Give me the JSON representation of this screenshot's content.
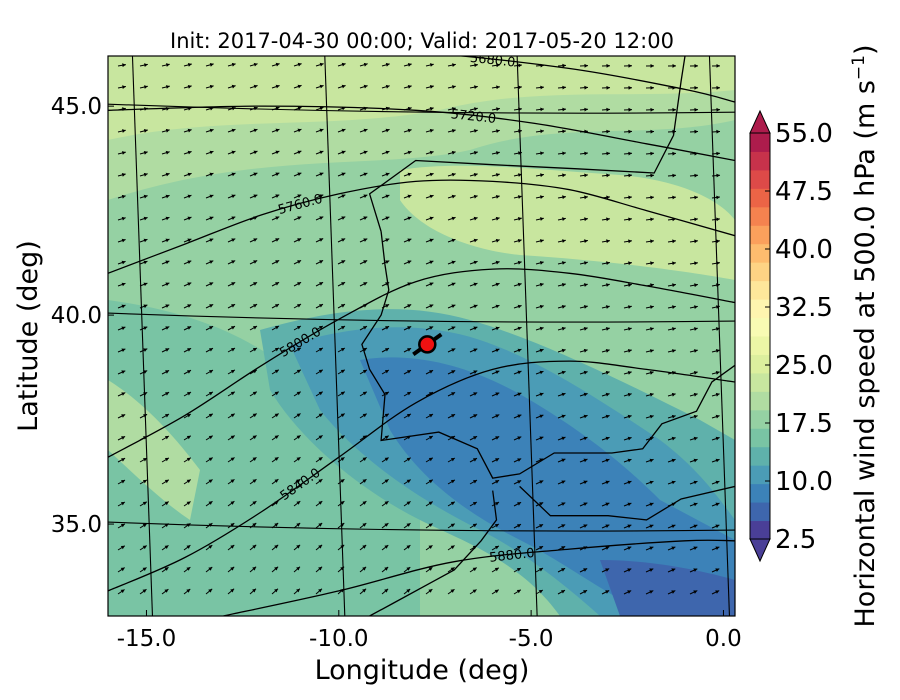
{
  "chart_data": {
    "type": "heatmap",
    "title": "Init: 2017-04-30 00:00; Valid: 2017-05-20 12:00",
    "xlabel": "Longitude (deg)",
    "ylabel": "Latitude (deg)",
    "xlim": [
      -16.0,
      0.3
    ],
    "ylim": [
      32.8,
      46.2
    ],
    "x_ticks": [
      -15.0,
      -10.0,
      -5.0,
      0.0
    ],
    "x_tick_labels": [
      "-15.0",
      "-10.0",
      "-5.0",
      "0.0"
    ],
    "y_ticks": [
      35.0,
      40.0,
      45.0
    ],
    "y_tick_labels": [
      "35.0",
      "40.0",
      "45.0"
    ],
    "colorbar": {
      "label": "Horizontal wind speed at 500.0 hPa (m s",
      "label_superscript": "−1",
      "label_suffix": ")",
      "min": 2.5,
      "max": 55.0,
      "step": 2.5,
      "tick_values": [
        2.5,
        10.0,
        17.5,
        25.0,
        32.5,
        40.0,
        47.5,
        55.0
      ],
      "tick_labels": [
        "2.5",
        "10.0",
        "17.5",
        "25.0",
        "32.5",
        "40.0",
        "47.5",
        "55.0"
      ],
      "colors": [
        "#4a3f97",
        "#3e66ad",
        "#3c82b8",
        "#4b9cb6",
        "#5fb1ab",
        "#79c4a4",
        "#95d1a3",
        "#b0dca2",
        "#c8e69f",
        "#dcef9e",
        "#ecf6a6",
        "#f8fbb3",
        "#fef5af",
        "#fee79b",
        "#fdd384",
        "#fdbc6e",
        "#fba05c",
        "#f5824f",
        "#ec6446",
        "#dd4a48",
        "#c7324b",
        "#ad1c4c"
      ]
    },
    "contours_geopotential_height_m": [
      {
        "value": 5680.0,
        "label": "5680.0",
        "path": [
          [
            -16,
            46.6
          ],
          [
            -12,
            46.5
          ],
          [
            -8,
            46.3
          ],
          [
            -4,
            45.9
          ],
          [
            -1,
            45.4
          ],
          [
            0.3,
            45.1
          ]
        ]
      },
      {
        "value": 5720.0,
        "label": "5720.0",
        "path": [
          [
            -16,
            44.9
          ],
          [
            -12,
            45.0
          ],
          [
            -8,
            44.9
          ],
          [
            -5,
            44.6
          ],
          [
            -2,
            44.1
          ],
          [
            0.3,
            43.7
          ]
        ]
      },
      {
        "value": 5760.0,
        "label": "5760.0",
        "path": [
          [
            -16,
            41.0
          ],
          [
            -14,
            41.7
          ],
          [
            -12,
            42.4
          ],
          [
            -10,
            42.9
          ],
          [
            -8,
            43.2
          ],
          [
            -6,
            43.2
          ],
          [
            -4,
            43.0
          ],
          [
            -2,
            42.5
          ],
          [
            0.3,
            41.9
          ]
        ]
      },
      {
        "value": 5800.0,
        "label": "5800.0",
        "path": [
          [
            -16,
            36.6
          ],
          [
            -14,
            37.6
          ],
          [
            -12,
            38.8
          ],
          [
            -10,
            39.9
          ],
          [
            -8,
            40.8
          ],
          [
            -6,
            41.1
          ],
          [
            -4,
            41.0
          ],
          [
            -2,
            40.7
          ],
          [
            0.3,
            40.3
          ]
        ]
      },
      {
        "value": 5840.0,
        "label": "5840.0",
        "path": [
          [
            -16,
            33.4
          ],
          [
            -14,
            34.2
          ],
          [
            -12,
            35.3
          ],
          [
            -10,
            36.6
          ],
          [
            -8,
            37.9
          ],
          [
            -6,
            38.7
          ],
          [
            -4,
            38.9
          ],
          [
            -2,
            38.7
          ],
          [
            0.3,
            38.4
          ]
        ]
      },
      {
        "value": 5880.0,
        "label": "5880.0",
        "path": [
          [
            -13,
            32.8
          ],
          [
            -10,
            33.4
          ],
          [
            -7,
            34.1
          ],
          [
            -4,
            34.4
          ],
          [
            -1,
            34.6
          ],
          [
            0.3,
            34.6
          ]
        ]
      }
    ],
    "marker": {
      "name": "",
      "lon": -7.7,
      "lat": 39.3,
      "color": "#ee1111"
    },
    "coastline": [
      [
        -8.9,
        42.0
      ],
      [
        -8.8,
        41.2
      ],
      [
        -8.7,
        40.6
      ],
      [
        -8.9,
        40.0
      ],
      [
        -9.4,
        39.3
      ],
      [
        -9.2,
        38.7
      ],
      [
        -8.8,
        38.1
      ],
      [
        -8.9,
        37.0
      ],
      [
        -7.4,
        37.2
      ],
      [
        -6.4,
        36.8
      ],
      [
        -6.0,
        36.1
      ],
      [
        -5.3,
        36.2
      ],
      [
        -4.4,
        36.7
      ],
      [
        -2.9,
        36.7
      ],
      [
        -2.1,
        36.8
      ],
      [
        -1.6,
        37.4
      ],
      [
        -0.7,
        37.7
      ],
      [
        -0.3,
        38.4
      ],
      [
        0.3,
        38.8
      ]
    ],
    "coastline_north": [
      [
        -8.9,
        42.0
      ],
      [
        -9.2,
        42.9
      ],
      [
        -8.0,
        43.7
      ],
      [
        -6.0,
        43.6
      ],
      [
        -3.8,
        43.5
      ],
      [
        -1.8,
        43.4
      ],
      [
        -1.3,
        44.3
      ],
      [
        -1.1,
        45.6
      ],
      [
        -1.0,
        46.2
      ]
    ],
    "coastline_africa": [
      [
        -6.0,
        35.8
      ],
      [
        -5.9,
        35.1
      ],
      [
        -6.3,
        34.6
      ],
      [
        -7.0,
        33.9
      ],
      [
        -7.6,
        33.6
      ],
      [
        -8.6,
        33.1
      ],
      [
        -9.2,
        32.8
      ]
    ],
    "coastline_africa_north": [
      [
        -5.3,
        35.9
      ],
      [
        -4.5,
        35.2
      ],
      [
        -3.0,
        35.2
      ],
      [
        -2.0,
        35.1
      ],
      [
        -1.1,
        35.6
      ],
      [
        0.3,
        35.9
      ]
    ]
  }
}
